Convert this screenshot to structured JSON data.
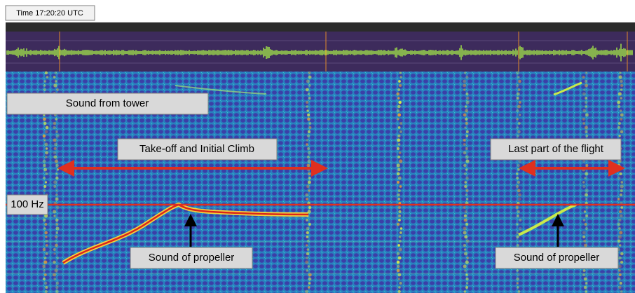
{
  "time_label": "Time 17:20:20 UTC",
  "annotations": {
    "tower": "Sound from tower",
    "takeoff": "Take-off and Initial Climb",
    "last_part": "Last part of the flight",
    "frequency": "100 Hz",
    "propeller_left": "Sound of propeller",
    "propeller_right": "Sound of propeller"
  }
}
